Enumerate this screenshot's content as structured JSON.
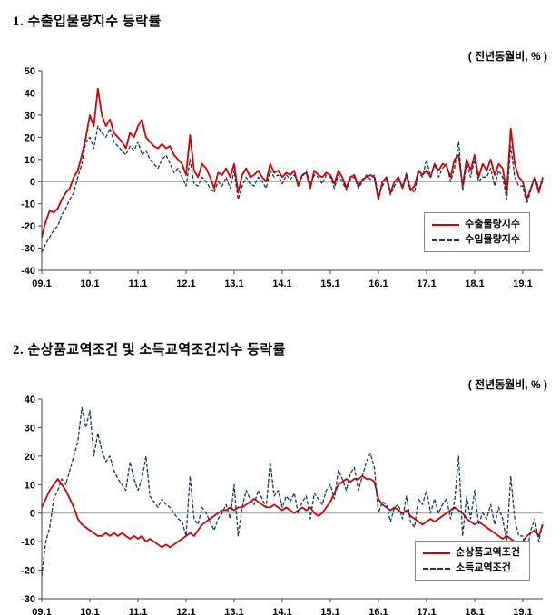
{
  "page": {
    "section1_title": "1. 수출입물량지수 등락률",
    "section2_title": "2. 순상품교역조건 및 소득교역조건지수 등락률",
    "unit_note": "( 전년동월비, % )"
  },
  "chart_data": [
    {
      "type": "line",
      "title": "수출입물량지수 등락률",
      "unit_label": "( 전년동월비, % )",
      "x_start": "2009.1",
      "x_tick_labels": [
        "09.1",
        "10.1",
        "11.1",
        "12.1",
        "13.1",
        "14.1",
        "15.1",
        "16.1",
        "17.1",
        "18.1",
        "19.1"
      ],
      "x_tick_every": 12,
      "ylim": [
        -40,
        50
      ],
      "ytick_step": 10,
      "grid": "zero-line-only",
      "legend_position": "bottom-right",
      "series": [
        {
          "name": "수출물량지수",
          "color": "#d40000",
          "style": "solid",
          "values": [
            -25,
            -18,
            -13,
            -14,
            -12,
            -8,
            -5,
            -3,
            2,
            5,
            12,
            20,
            30,
            25,
            42,
            30,
            25,
            28,
            22,
            20,
            18,
            15,
            22,
            20,
            25,
            28,
            20,
            18,
            16,
            15,
            17,
            15,
            16,
            12,
            10,
            8,
            3,
            21,
            5,
            2,
            8,
            6,
            2,
            -3,
            4,
            3,
            6,
            2,
            8,
            -5,
            3,
            6,
            2,
            3,
            5,
            2,
            0,
            8,
            4,
            5,
            2,
            4,
            3,
            5,
            -2,
            3,
            4,
            -3,
            5,
            3,
            2,
            4,
            3,
            -1,
            5,
            2,
            -3,
            2,
            3,
            -2,
            1,
            2,
            3,
            2,
            -8,
            0,
            2,
            -5,
            0,
            2,
            -3,
            3,
            -4,
            -2,
            5,
            3,
            5,
            2,
            8,
            5,
            8,
            7,
            2,
            10,
            12,
            -2,
            10,
            5,
            12,
            2,
            8,
            5,
            10,
            3,
            8,
            6,
            -5,
            24,
            8,
            2,
            0,
            -8,
            -3,
            2,
            -5,
            2
          ]
        },
        {
          "name": "수입물량지수",
          "color": "#17375e",
          "style": "dashed",
          "values": [
            -32,
            -28,
            -25,
            -22,
            -20,
            -15,
            -12,
            -8,
            -5,
            2,
            8,
            18,
            20,
            15,
            25,
            22,
            20,
            24,
            18,
            16,
            14,
            12,
            16,
            14,
            18,
            12,
            14,
            10,
            8,
            6,
            10,
            12,
            8,
            4,
            6,
            2,
            -2,
            10,
            -1,
            -2,
            2,
            0,
            -3,
            -5,
            0,
            -2,
            2,
            -3,
            5,
            -8,
            -2,
            2,
            -1,
            -2,
            2,
            0,
            -3,
            5,
            2,
            3,
            -1,
            3,
            1,
            3,
            0,
            2,
            5,
            -1,
            3,
            2,
            -1,
            3,
            2,
            -3,
            3,
            0,
            -4,
            1,
            2,
            -3,
            0,
            3,
            1,
            3,
            -6,
            -2,
            1,
            -6,
            -2,
            1,
            -2,
            4,
            -3,
            -5,
            4,
            2,
            10,
            2,
            8,
            2,
            6,
            8,
            0,
            6,
            18,
            -4,
            8,
            2,
            10,
            0,
            2,
            2,
            6,
            -2,
            5,
            2,
            -8,
            16,
            2,
            -2,
            -2,
            -10,
            -4,
            2,
            -3,
            0
          ]
        }
      ]
    },
    {
      "type": "line",
      "title": "순상품교역조건 및 소득교역조건지수 등락률",
      "unit_label": "( 전년동월비, % )",
      "x_start": "2009.1",
      "x_tick_labels": [
        "09.1",
        "10.1",
        "11.1",
        "12.1",
        "13.1",
        "14.1",
        "15.1",
        "16.1",
        "17.1",
        "18.1",
        "19.1"
      ],
      "x_tick_every": 12,
      "ylim": [
        -30,
        40
      ],
      "ytick_step": 10,
      "grid": "zero-line-only",
      "legend_position": "bottom-right",
      "series": [
        {
          "name": "순상품교역조건",
          "color": "#d40000",
          "style": "solid",
          "values": [
            2,
            5,
            8,
            10,
            12,
            10,
            8,
            5,
            2,
            -2,
            -4,
            -5,
            -6,
            -7,
            -8,
            -8,
            -7,
            -8,
            -7,
            -8,
            -7,
            -8,
            -9,
            -8,
            -9,
            -8,
            -10,
            -9,
            -10,
            -11,
            -12,
            -11,
            -12,
            -11,
            -10,
            -9,
            -8,
            -7,
            -8,
            -6,
            -4,
            -3,
            -2,
            -1,
            0,
            1,
            1,
            2,
            1,
            2,
            2,
            3,
            4,
            5,
            4,
            3,
            2,
            2,
            3,
            2,
            1,
            2,
            1,
            0,
            1,
            2,
            1,
            2,
            0,
            -1,
            0,
            2,
            4,
            7,
            10,
            11,
            12,
            11,
            12,
            12,
            13,
            12,
            12,
            11,
            5,
            3,
            2,
            1,
            2,
            1,
            0,
            1,
            -1,
            -2,
            -3,
            -4,
            -3,
            -2,
            -3,
            -2,
            -1,
            0,
            1,
            2,
            1,
            0,
            -2,
            -3,
            -4,
            -3,
            -4,
            -5,
            -6,
            -7,
            -8,
            -9,
            -8,
            -9,
            -10,
            -11,
            -10,
            -8,
            -7,
            -6,
            -8,
            -4
          ]
        },
        {
          "name": "소득교역조건",
          "color": "#17375e",
          "style": "dashed",
          "values": [
            -22,
            -10,
            -5,
            5,
            8,
            12,
            10,
            15,
            20,
            25,
            37,
            30,
            36,
            20,
            28,
            22,
            18,
            20,
            15,
            12,
            10,
            8,
            18,
            12,
            8,
            12,
            20,
            6,
            4,
            2,
            5,
            3,
            2,
            0,
            -2,
            -3,
            -8,
            13,
            -2,
            -4,
            2,
            0,
            -3,
            -6,
            -2,
            0,
            3,
            -2,
            10,
            -8,
            2,
            8,
            5,
            3,
            8,
            5,
            2,
            18,
            6,
            8,
            2,
            6,
            4,
            7,
            0,
            4,
            6,
            -2,
            7,
            5,
            3,
            8,
            10,
            5,
            15,
            12,
            8,
            14,
            16,
            8,
            13,
            18,
            21,
            16,
            0,
            4,
            3,
            -3,
            2,
            3,
            -2,
            6,
            -3,
            -5,
            5,
            3,
            8,
            0,
            5,
            0,
            3,
            5,
            -2,
            4,
            20,
            -8,
            6,
            -2,
            8,
            -4,
            0,
            -2,
            3,
            -4,
            2,
            -2,
            -10,
            13,
            -2,
            -8,
            -8,
            -14,
            -6,
            -2,
            -10,
            -3
          ]
        }
      ]
    }
  ]
}
